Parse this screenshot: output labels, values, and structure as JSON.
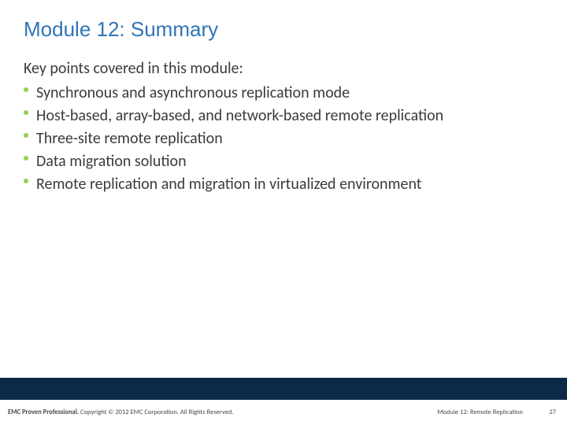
{
  "colors": {
    "title": "#2e75b6",
    "body_text": "#3b3b3b",
    "bullet": "#92d050",
    "footer_bar": "#0b2a4a",
    "footer_text": "#4a4a4a",
    "background": "#ffffff"
  },
  "title": "Module 12: Summary",
  "lead": "Key points covered in this module:",
  "bullets": [
    "Synchronous and asynchronous replication mode",
    "Host-based, array-based, and network-based remote replication",
    "Three-site remote replication",
    "Data migration solution",
    "Remote replication and migration in virtualized environment"
  ],
  "footer": {
    "left_bold": "EMC Proven Professional.",
    "left_rest": " Copyright © 2012 EMC Corporation. All Rights Reserved.",
    "module": "Module 12: Remote Replication",
    "page": "27"
  }
}
